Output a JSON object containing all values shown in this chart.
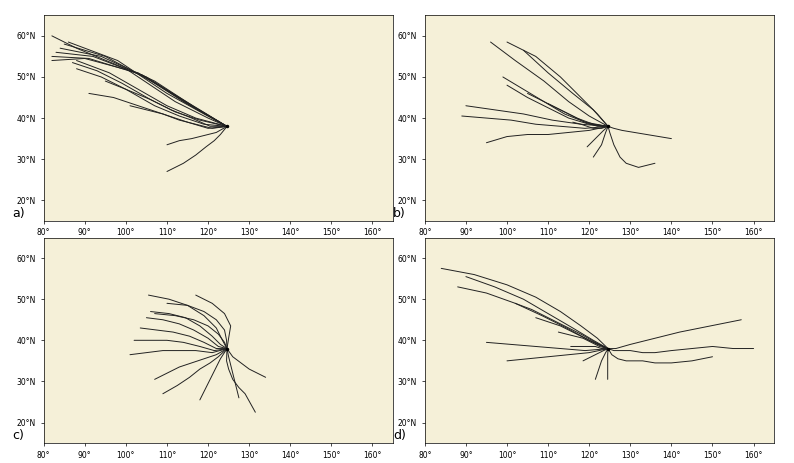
{
  "panels": [
    "a)",
    "b)",
    "c)",
    "d)"
  ],
  "site_lon": 124.6,
  "site_lat": 37.97,
  "map_extent": [
    80,
    165,
    15,
    65
  ],
  "lon_ticks": [
    80,
    90,
    100,
    110,
    120,
    130,
    140,
    150,
    160
  ],
  "lat_ticks": [
    20,
    30,
    40,
    50,
    60
  ],
  "background_color": "#f5f0d8",
  "border_color": "#666666",
  "trajectory_color": "#222222",
  "trajectory_linewidth": 0.7,
  "panel_label_fontsize": 9,
  "tick_fontsize": 5.5,
  "fig_width": 7.94,
  "fig_height": 4.63,
  "trajectories_jan": [
    [
      [
        124.6,
        37.97
      ],
      [
        120.0,
        40.0
      ],
      [
        112.0,
        44.0
      ],
      [
        100.0,
        52.0
      ],
      [
        88.0,
        57.0
      ],
      [
        82.0,
        60.0
      ]
    ],
    [
      [
        124.6,
        37.97
      ],
      [
        119.0,
        41.0
      ],
      [
        110.0,
        46.0
      ],
      [
        98.0,
        54.0
      ],
      [
        86.0,
        58.5
      ]
    ],
    [
      [
        124.6,
        37.97
      ],
      [
        118.0,
        42.0
      ],
      [
        108.0,
        48.0
      ],
      [
        95.0,
        55.0
      ],
      [
        85.0,
        58.0
      ]
    ],
    [
      [
        124.6,
        37.97
      ],
      [
        117.0,
        42.5
      ],
      [
        107.0,
        49.0
      ],
      [
        94.0,
        55.0
      ],
      [
        84.0,
        57.0
      ]
    ],
    [
      [
        124.6,
        37.97
      ],
      [
        116.0,
        43.0
      ],
      [
        105.0,
        50.0
      ],
      [
        92.0,
        55.0
      ],
      [
        83.0,
        56.0
      ]
    ],
    [
      [
        124.6,
        37.97
      ],
      [
        115.0,
        43.5
      ],
      [
        104.0,
        50.5
      ],
      [
        91.0,
        54.5
      ],
      [
        82.0,
        55.0
      ]
    ],
    [
      [
        124.6,
        37.97
      ],
      [
        114.0,
        44.0
      ],
      [
        103.0,
        51.0
      ],
      [
        90.0,
        54.5
      ],
      [
        82.0,
        54.0
      ]
    ],
    [
      [
        124.6,
        37.97
      ],
      [
        117.0,
        40.0
      ],
      [
        110.0,
        43.0
      ],
      [
        103.0,
        47.0
      ],
      [
        96.0,
        51.0
      ],
      [
        88.0,
        54.0
      ]
    ],
    [
      [
        124.6,
        37.97
      ],
      [
        118.0,
        39.5
      ],
      [
        112.0,
        41.5
      ],
      [
        106.0,
        44.5
      ],
      [
        99.0,
        48.5
      ],
      [
        93.0,
        51.5
      ],
      [
        87.0,
        53.5
      ]
    ],
    [
      [
        124.6,
        37.97
      ],
      [
        119.0,
        38.5
      ],
      [
        113.0,
        40.5
      ],
      [
        107.0,
        43.0
      ],
      [
        100.0,
        47.0
      ],
      [
        94.0,
        50.0
      ],
      [
        88.0,
        52.0
      ]
    ],
    [
      [
        124.6,
        37.97
      ],
      [
        120.5,
        38.0
      ],
      [
        116.0,
        40.0
      ],
      [
        111.0,
        42.0
      ],
      [
        106.0,
        44.5
      ],
      [
        100.0,
        47.0
      ],
      [
        95.0,
        49.0
      ]
    ],
    [
      [
        124.6,
        37.97
      ],
      [
        120.0,
        37.5
      ],
      [
        115.0,
        39.0
      ],
      [
        109.0,
        41.0
      ],
      [
        103.0,
        43.0
      ],
      [
        97.0,
        45.0
      ],
      [
        91.0,
        46.0
      ]
    ],
    [
      [
        124.6,
        37.97
      ],
      [
        121.0,
        37.5
      ],
      [
        117.0,
        38.5
      ],
      [
        113.0,
        39.5
      ],
      [
        109.0,
        41.0
      ],
      [
        105.0,
        42.0
      ],
      [
        101.0,
        43.0
      ]
    ],
    [
      [
        124.6,
        37.97
      ],
      [
        122.0,
        36.5
      ],
      [
        120.0,
        36.0
      ],
      [
        118.0,
        35.5
      ],
      [
        116.0,
        35.0
      ],
      [
        113.0,
        34.5
      ],
      [
        110.0,
        33.5
      ]
    ],
    [
      [
        124.6,
        37.97
      ],
      [
        123.0,
        36.0
      ],
      [
        121.5,
        34.5
      ],
      [
        119.5,
        33.0
      ],
      [
        117.0,
        31.0
      ],
      [
        114.0,
        29.0
      ],
      [
        110.0,
        27.0
      ]
    ]
  ],
  "trajectories_apr": [
    [
      [
        124.6,
        37.97
      ],
      [
        122.0,
        41.0
      ],
      [
        118.0,
        45.0
      ],
      [
        113.0,
        50.0
      ],
      [
        107.0,
        55.0
      ],
      [
        100.0,
        58.5
      ]
    ],
    [
      [
        124.6,
        37.97
      ],
      [
        121.0,
        42.0
      ],
      [
        116.0,
        46.0
      ],
      [
        110.0,
        51.0
      ],
      [
        104.0,
        56.5
      ]
    ],
    [
      [
        124.6,
        37.97
      ],
      [
        120.0,
        40.5
      ],
      [
        115.0,
        44.0
      ],
      [
        109.0,
        49.0
      ],
      [
        102.0,
        54.0
      ],
      [
        96.0,
        58.5
      ]
    ],
    [
      [
        124.6,
        37.97
      ],
      [
        119.0,
        39.0
      ],
      [
        114.0,
        41.0
      ],
      [
        109.0,
        44.0
      ],
      [
        104.0,
        47.0
      ],
      [
        99.0,
        50.0
      ]
    ],
    [
      [
        124.6,
        37.97
      ],
      [
        120.0,
        38.5
      ],
      [
        115.0,
        40.0
      ],
      [
        110.0,
        42.5
      ],
      [
        105.0,
        45.0
      ],
      [
        100.0,
        48.0
      ]
    ],
    [
      [
        124.6,
        37.97
      ],
      [
        121.0,
        38.5
      ],
      [
        117.0,
        40.0
      ],
      [
        113.0,
        42.0
      ],
      [
        109.0,
        44.0
      ],
      [
        105.0,
        46.0
      ]
    ],
    [
      [
        124.6,
        37.97
      ],
      [
        122.0,
        38.0
      ],
      [
        119.0,
        39.0
      ],
      [
        116.0,
        40.5
      ],
      [
        113.0,
        42.0
      ],
      [
        110.0,
        43.5
      ]
    ],
    [
      [
        124.6,
        37.97
      ],
      [
        123.0,
        37.5
      ],
      [
        121.0,
        37.5
      ],
      [
        119.5,
        38.0
      ],
      [
        118.0,
        38.5
      ],
      [
        116.0,
        39.0
      ]
    ],
    [
      [
        124.6,
        37.97
      ],
      [
        123.5,
        37.0
      ],
      [
        122.5,
        36.0
      ],
      [
        121.5,
        35.0
      ],
      [
        120.5,
        34.0
      ],
      [
        119.5,
        33.0
      ]
    ],
    [
      [
        124.6,
        37.97
      ],
      [
        124.0,
        36.5
      ],
      [
        123.5,
        35.0
      ],
      [
        123.0,
        33.5
      ],
      [
        122.0,
        32.0
      ],
      [
        121.0,
        30.5
      ]
    ],
    [
      [
        124.6,
        37.97
      ],
      [
        125.0,
        36.5
      ],
      [
        125.5,
        35.0
      ],
      [
        126.0,
        33.5
      ],
      [
        127.5,
        30.5
      ],
      [
        129.0,
        29.0
      ],
      [
        132.0,
        28.0
      ],
      [
        136.0,
        29.0
      ]
    ],
    [
      [
        124.6,
        37.97
      ],
      [
        126.0,
        37.5
      ],
      [
        128.0,
        37.0
      ],
      [
        131.0,
        36.5
      ],
      [
        134.0,
        36.0
      ],
      [
        137.0,
        35.5
      ],
      [
        140.0,
        35.0
      ]
    ],
    [
      [
        124.6,
        37.97
      ],
      [
        120.0,
        37.0
      ],
      [
        115.0,
        36.5
      ],
      [
        110.0,
        36.0
      ],
      [
        105.0,
        36.0
      ],
      [
        100.0,
        35.5
      ],
      [
        95.0,
        34.0
      ]
    ],
    [
      [
        124.6,
        37.97
      ],
      [
        119.0,
        37.5
      ],
      [
        113.0,
        38.0
      ],
      [
        107.0,
        38.5
      ],
      [
        101.0,
        39.5
      ],
      [
        95.0,
        40.0
      ],
      [
        89.0,
        40.5
      ]
    ],
    [
      [
        124.6,
        37.97
      ],
      [
        118.0,
        38.5
      ],
      [
        111.0,
        39.5
      ],
      [
        104.0,
        41.0
      ],
      [
        97.0,
        42.0
      ],
      [
        90.0,
        43.0
      ]
    ]
  ],
  "trajectories_jul": [
    [
      [
        124.6,
        37.97
      ],
      [
        124.0,
        39.5
      ],
      [
        122.5,
        41.5
      ],
      [
        120.0,
        43.5
      ],
      [
        116.5,
        45.0
      ],
      [
        112.0,
        46.0
      ],
      [
        107.0,
        46.5
      ]
    ],
    [
      [
        124.6,
        37.97
      ],
      [
        124.5,
        40.0
      ],
      [
        124.0,
        42.5
      ],
      [
        122.0,
        45.0
      ],
      [
        119.0,
        47.0
      ],
      [
        115.0,
        48.5
      ],
      [
        110.0,
        49.0
      ]
    ],
    [
      [
        124.6,
        37.97
      ],
      [
        125.0,
        40.5
      ],
      [
        125.5,
        43.5
      ],
      [
        124.0,
        46.5
      ],
      [
        121.0,
        49.0
      ],
      [
        117.0,
        51.0
      ]
    ],
    [
      [
        124.6,
        37.97
      ],
      [
        123.5,
        40.0
      ],
      [
        122.0,
        43.0
      ],
      [
        119.0,
        46.0
      ],
      [
        115.0,
        48.5
      ],
      [
        110.5,
        50.0
      ],
      [
        105.5,
        51.0
      ]
    ],
    [
      [
        124.6,
        37.97
      ],
      [
        123.0,
        39.0
      ],
      [
        121.0,
        41.0
      ],
      [
        118.0,
        43.5
      ],
      [
        114.5,
        45.5
      ],
      [
        110.5,
        46.5
      ],
      [
        106.0,
        47.0
      ]
    ],
    [
      [
        124.6,
        37.97
      ],
      [
        122.5,
        38.5
      ],
      [
        120.0,
        40.5
      ],
      [
        116.5,
        42.5
      ],
      [
        113.0,
        44.0
      ],
      [
        109.0,
        45.0
      ],
      [
        105.0,
        45.5
      ]
    ],
    [
      [
        124.6,
        37.97
      ],
      [
        122.0,
        38.0
      ],
      [
        119.0,
        39.5
      ],
      [
        115.5,
        41.0
      ],
      [
        111.5,
        42.0
      ],
      [
        107.5,
        42.5
      ],
      [
        103.5,
        43.0
      ]
    ],
    [
      [
        124.6,
        37.97
      ],
      [
        121.5,
        37.5
      ],
      [
        118.0,
        38.5
      ],
      [
        114.0,
        39.5
      ],
      [
        110.0,
        40.0
      ],
      [
        106.0,
        40.0
      ],
      [
        102.0,
        40.0
      ]
    ],
    [
      [
        124.6,
        37.97
      ],
      [
        121.0,
        37.0
      ],
      [
        117.0,
        37.5
      ],
      [
        113.0,
        37.5
      ],
      [
        109.0,
        37.5
      ],
      [
        105.0,
        37.0
      ],
      [
        101.0,
        36.5
      ]
    ],
    [
      [
        124.6,
        37.97
      ],
      [
        122.0,
        36.5
      ],
      [
        119.0,
        35.5
      ],
      [
        116.0,
        34.5
      ],
      [
        113.0,
        33.5
      ],
      [
        110.0,
        32.0
      ],
      [
        107.0,
        30.5
      ]
    ],
    [
      [
        124.6,
        37.97
      ],
      [
        122.5,
        36.0
      ],
      [
        120.5,
        34.5
      ],
      [
        118.0,
        33.0
      ],
      [
        115.5,
        31.0
      ],
      [
        112.5,
        29.0
      ],
      [
        109.0,
        27.0
      ]
    ],
    [
      [
        124.6,
        37.97
      ],
      [
        123.0,
        35.5
      ],
      [
        122.0,
        33.5
      ],
      [
        121.0,
        31.5
      ],
      [
        120.0,
        29.5
      ],
      [
        119.0,
        27.5
      ],
      [
        118.0,
        25.5
      ]
    ],
    [
      [
        124.6,
        37.97
      ],
      [
        125.0,
        36.0
      ],
      [
        125.5,
        34.0
      ],
      [
        126.0,
        32.0
      ],
      [
        126.5,
        30.0
      ],
      [
        127.0,
        28.0
      ],
      [
        127.5,
        26.0
      ]
    ],
    [
      [
        124.6,
        37.97
      ],
      [
        126.0,
        36.0
      ],
      [
        128.0,
        34.5
      ],
      [
        130.0,
        33.0
      ],
      [
        132.0,
        32.0
      ],
      [
        134.0,
        31.0
      ]
    ],
    [
      [
        124.6,
        37.97
      ],
      [
        124.5,
        35.0
      ],
      [
        125.0,
        33.0
      ],
      [
        126.0,
        30.5
      ],
      [
        127.5,
        28.5
      ],
      [
        129.0,
        27.0
      ],
      [
        131.5,
        22.5
      ]
    ]
  ],
  "trajectories_oct": [
    [
      [
        124.6,
        37.97
      ],
      [
        122.0,
        40.5
      ],
      [
        118.0,
        43.5
      ],
      [
        113.0,
        47.0
      ],
      [
        107.0,
        50.5
      ],
      [
        100.0,
        53.5
      ],
      [
        92.0,
        56.0
      ],
      [
        84.0,
        57.5
      ]
    ],
    [
      [
        124.6,
        37.97
      ],
      [
        121.0,
        40.0
      ],
      [
        116.0,
        43.0
      ],
      [
        110.0,
        46.5
      ],
      [
        104.0,
        50.0
      ],
      [
        97.0,
        53.0
      ],
      [
        90.0,
        55.5
      ]
    ],
    [
      [
        124.6,
        37.97
      ],
      [
        120.0,
        40.0
      ],
      [
        114.5,
        43.0
      ],
      [
        108.5,
        46.0
      ],
      [
        102.0,
        49.0
      ],
      [
        95.0,
        51.5
      ],
      [
        88.0,
        53.0
      ]
    ],
    [
      [
        124.6,
        37.97
      ],
      [
        121.5,
        39.5
      ],
      [
        118.0,
        41.5
      ],
      [
        114.0,
        43.5
      ],
      [
        110.0,
        45.5
      ],
      [
        106.0,
        47.5
      ],
      [
        102.0,
        49.0
      ]
    ],
    [
      [
        124.6,
        37.97
      ],
      [
        122.0,
        39.0
      ],
      [
        119.0,
        40.5
      ],
      [
        116.0,
        42.0
      ],
      [
        113.0,
        43.5
      ],
      [
        110.0,
        44.5
      ],
      [
        107.0,
        45.5
      ]
    ],
    [
      [
        124.6,
        37.97
      ],
      [
        122.5,
        38.5
      ],
      [
        120.5,
        39.5
      ],
      [
        118.5,
        40.5
      ],
      [
        116.5,
        41.0
      ],
      [
        114.5,
        41.5
      ],
      [
        112.5,
        42.0
      ]
    ],
    [
      [
        124.6,
        37.97
      ],
      [
        123.0,
        38.0
      ],
      [
        121.5,
        38.5
      ],
      [
        120.0,
        38.5
      ],
      [
        118.5,
        38.5
      ],
      [
        117.0,
        38.5
      ],
      [
        115.5,
        38.5
      ]
    ],
    [
      [
        124.6,
        37.97
      ],
      [
        123.5,
        37.5
      ],
      [
        122.5,
        37.0
      ],
      [
        121.5,
        36.5
      ],
      [
        120.5,
        36.0
      ],
      [
        119.5,
        35.5
      ],
      [
        118.5,
        35.0
      ]
    ],
    [
      [
        124.6,
        37.97
      ],
      [
        124.0,
        37.0
      ],
      [
        123.5,
        36.0
      ],
      [
        123.0,
        35.0
      ],
      [
        122.5,
        33.5
      ],
      [
        122.0,
        32.0
      ],
      [
        121.5,
        30.5
      ]
    ],
    [
      [
        124.6,
        37.97
      ],
      [
        124.5,
        36.5
      ],
      [
        124.5,
        35.0
      ],
      [
        124.5,
        33.5
      ],
      [
        124.5,
        32.0
      ],
      [
        124.5,
        30.5
      ]
    ],
    [
      [
        124.6,
        37.97
      ],
      [
        125.5,
        36.5
      ],
      [
        127.0,
        35.5
      ],
      [
        129.0,
        35.0
      ],
      [
        131.0,
        35.0
      ],
      [
        133.0,
        35.0
      ],
      [
        136.0,
        34.5
      ],
      [
        140.0,
        34.5
      ],
      [
        145.0,
        35.0
      ],
      [
        150.0,
        36.0
      ]
    ],
    [
      [
        124.6,
        37.97
      ],
      [
        126.0,
        37.5
      ],
      [
        127.5,
        37.5
      ],
      [
        130.0,
        37.5
      ],
      [
        133.0,
        37.0
      ],
      [
        136.0,
        37.0
      ],
      [
        140.0,
        37.5
      ],
      [
        145.0,
        38.0
      ],
      [
        150.0,
        38.5
      ],
      [
        155.0,
        38.0
      ],
      [
        160.0,
        38.0
      ]
    ],
    [
      [
        124.6,
        37.97
      ],
      [
        126.5,
        38.0
      ],
      [
        130.0,
        39.0
      ],
      [
        134.0,
        40.0
      ],
      [
        138.0,
        41.0
      ],
      [
        142.0,
        42.0
      ],
      [
        147.0,
        43.0
      ],
      [
        152.0,
        44.0
      ],
      [
        157.0,
        45.0
      ]
    ],
    [
      [
        124.6,
        37.97
      ],
      [
        120.0,
        37.0
      ],
      [
        115.0,
        36.5
      ],
      [
        110.0,
        36.0
      ],
      [
        105.0,
        35.5
      ],
      [
        100.0,
        35.0
      ]
    ],
    [
      [
        124.6,
        37.97
      ],
      [
        119.0,
        37.5
      ],
      [
        113.0,
        38.0
      ],
      [
        107.0,
        38.5
      ],
      [
        101.0,
        39.0
      ],
      [
        95.0,
        39.5
      ]
    ]
  ]
}
